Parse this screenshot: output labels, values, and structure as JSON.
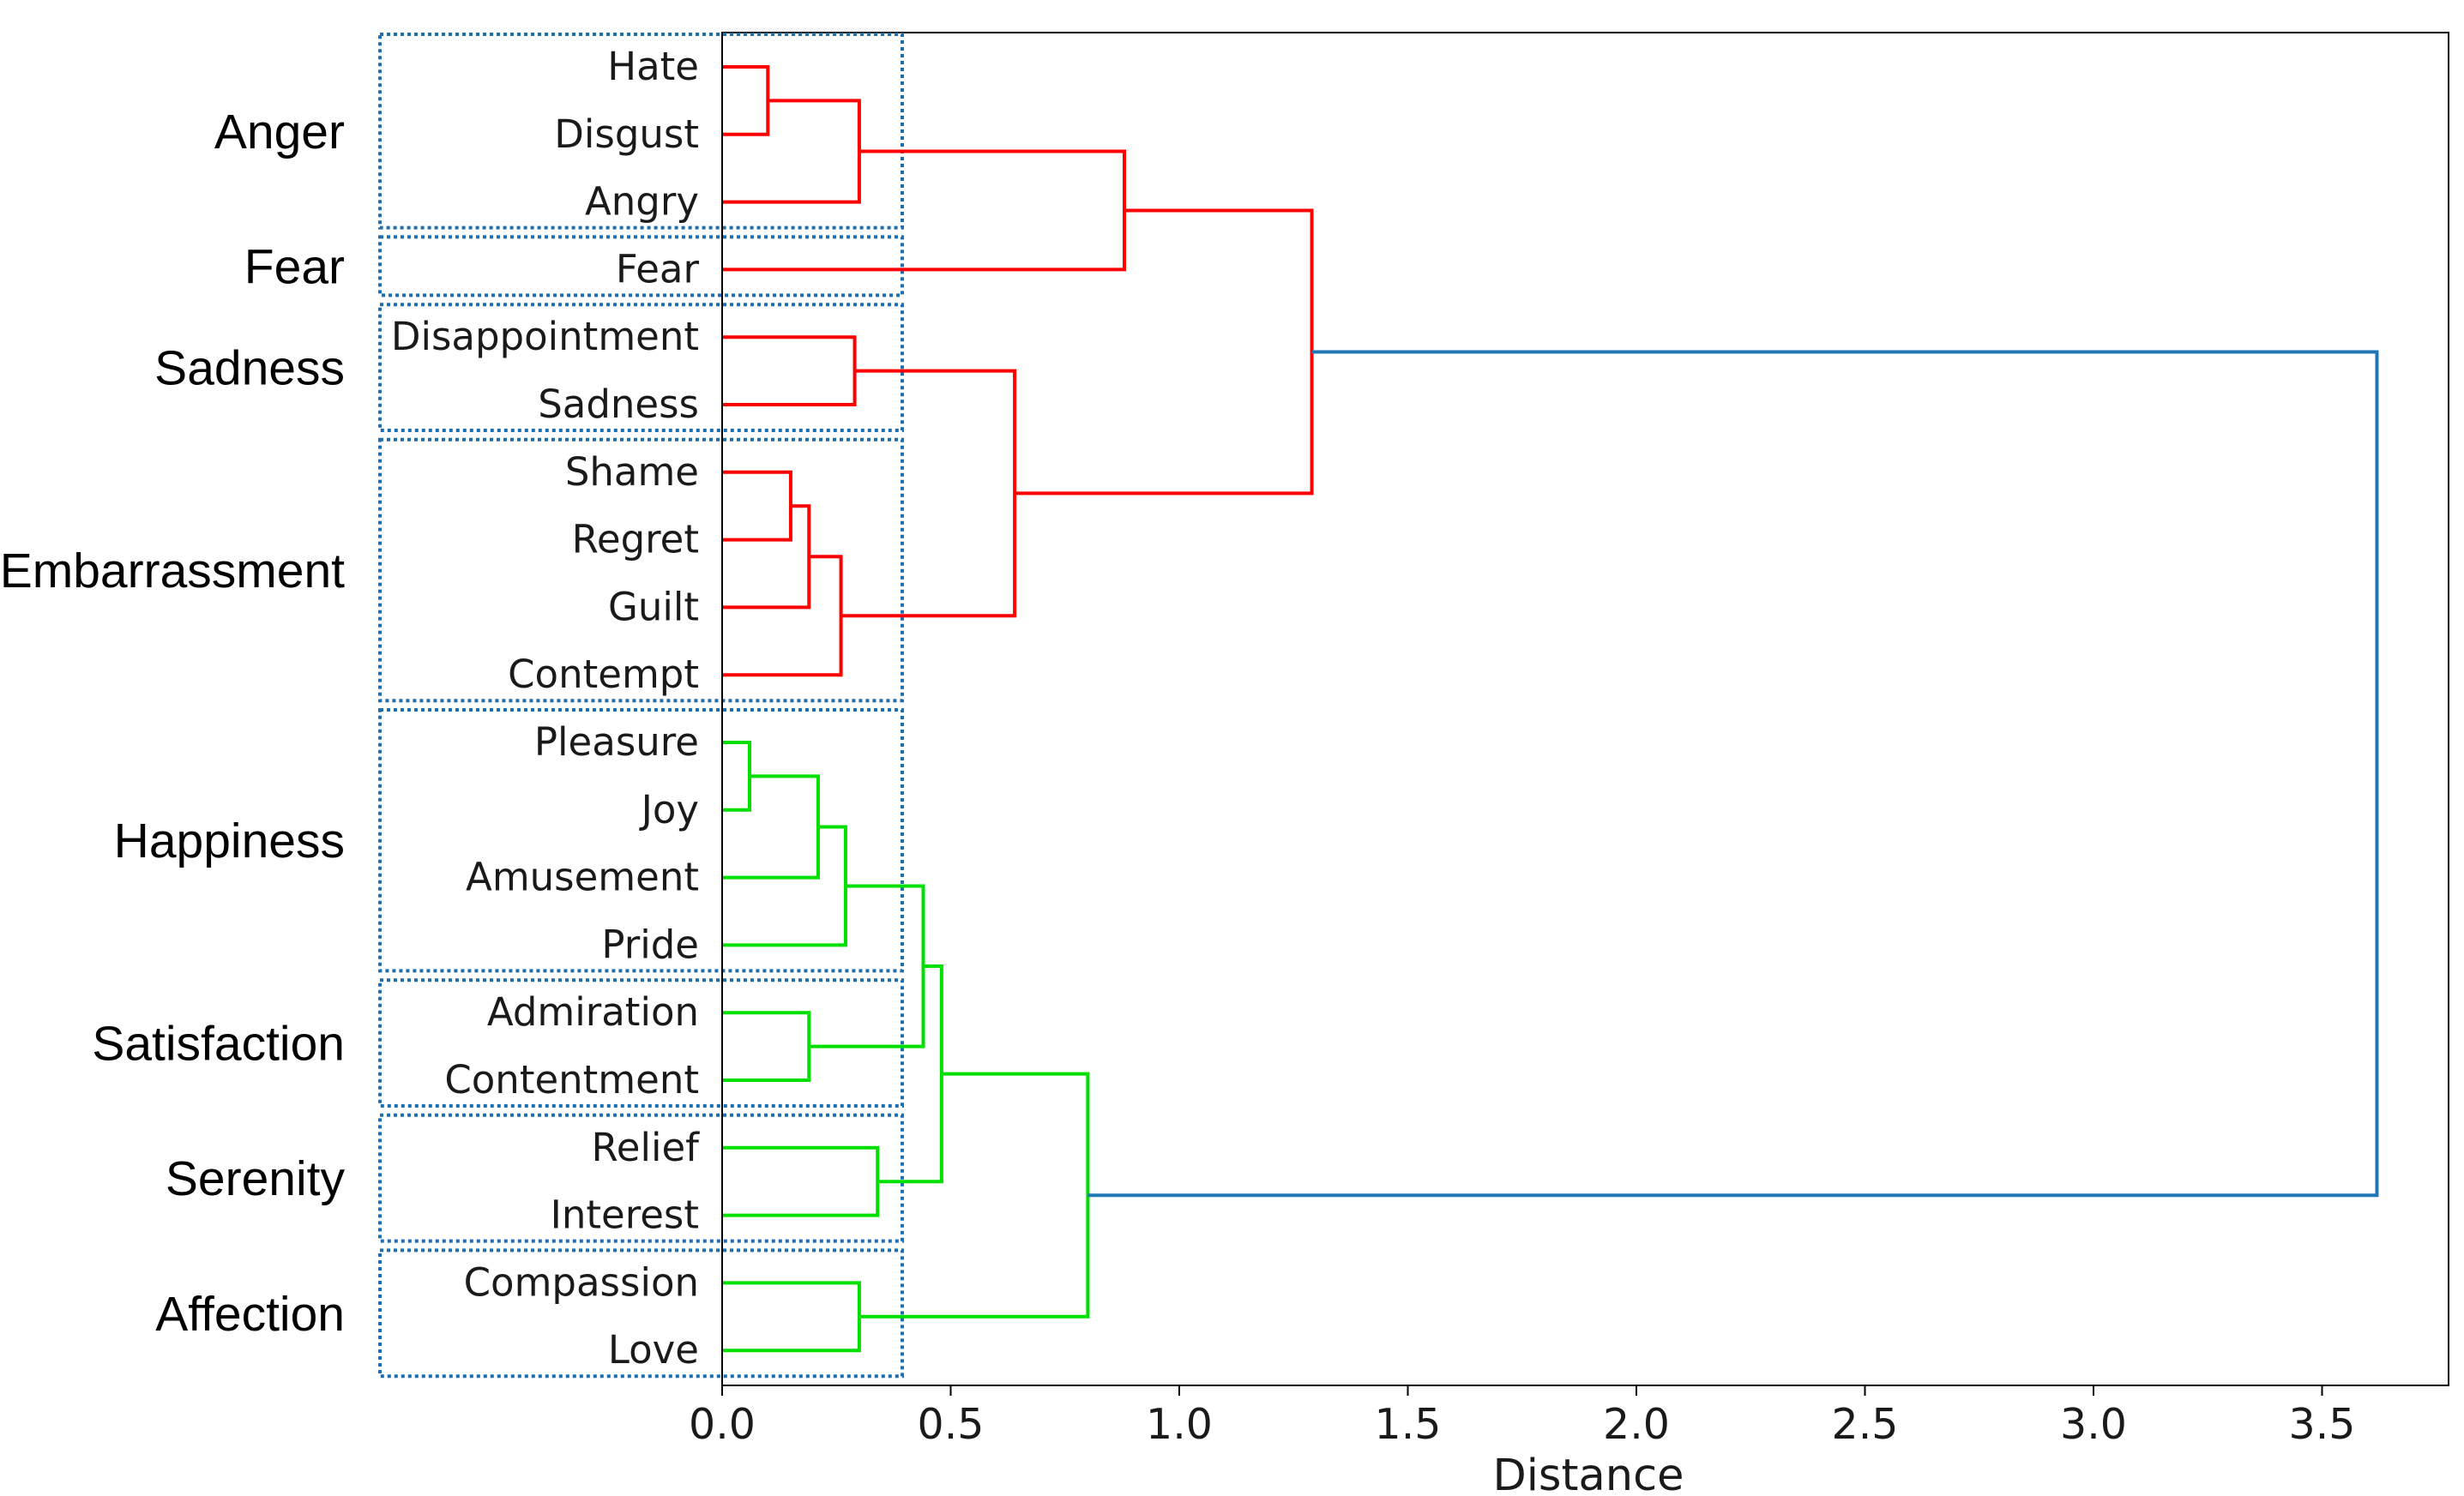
{
  "chart_data": {
    "type": "dendrogram",
    "orientation": "horizontal",
    "xlabel": "Distance",
    "xlim": [
      0.0,
      3.75
    ],
    "xticks": [
      0.0,
      0.5,
      1.0,
      1.5,
      2.0,
      2.5,
      3.0,
      3.5
    ],
    "xtick_labels": [
      "0.0",
      "0.5",
      "1.0",
      "1.5",
      "2.0",
      "2.5",
      "3.0",
      "3.5"
    ],
    "colors": {
      "cluster_a": "#ff0000",
      "cluster_b": "#00e000",
      "root": "#1f77b4",
      "group_box": "#1f6fb0"
    },
    "leaves": [
      "Hate",
      "Disgust",
      "Angry",
      "Fear",
      "Disappointment",
      "Sadness",
      "Shame",
      "Regret",
      "Guilt",
      "Contempt",
      "Pleasure",
      "Joy",
      "Amusement",
      "Pride",
      "Admiration",
      "Contentment",
      "Relief",
      "Interest",
      "Compassion",
      "Love"
    ],
    "merges": [
      {
        "id": "m1",
        "children": [
          "Hate",
          "Disgust"
        ],
        "distance": 0.1,
        "color": "cluster_a"
      },
      {
        "id": "m2",
        "children": [
          "m1",
          "Angry"
        ],
        "distance": 0.3,
        "color": "cluster_a"
      },
      {
        "id": "m3",
        "children": [
          "m2",
          "Fear"
        ],
        "distance": 0.88,
        "color": "cluster_a"
      },
      {
        "id": "m4",
        "children": [
          "Disappointment",
          "Sadness"
        ],
        "distance": 0.29,
        "color": "cluster_a"
      },
      {
        "id": "m5",
        "children": [
          "Shame",
          "Regret"
        ],
        "distance": 0.15,
        "color": "cluster_a"
      },
      {
        "id": "m6",
        "children": [
          "m5",
          "Guilt"
        ],
        "distance": 0.19,
        "color": "cluster_a"
      },
      {
        "id": "m7",
        "children": [
          "m6",
          "Contempt"
        ],
        "distance": 0.26,
        "color": "cluster_a"
      },
      {
        "id": "m8",
        "children": [
          "m4",
          "m7"
        ],
        "distance": 0.64,
        "color": "cluster_a"
      },
      {
        "id": "m9",
        "children": [
          "m3",
          "m8"
        ],
        "distance": 1.29,
        "color": "cluster_a"
      },
      {
        "id": "m10",
        "children": [
          "Pleasure",
          "Joy"
        ],
        "distance": 0.06,
        "color": "cluster_b"
      },
      {
        "id": "m11",
        "children": [
          "m10",
          "Amusement"
        ],
        "distance": 0.21,
        "color": "cluster_b"
      },
      {
        "id": "m12",
        "children": [
          "m11",
          "Pride"
        ],
        "distance": 0.27,
        "color": "cluster_b"
      },
      {
        "id": "m13",
        "children": [
          "Admiration",
          "Contentment"
        ],
        "distance": 0.19,
        "color": "cluster_b"
      },
      {
        "id": "m14",
        "children": [
          "m12",
          "m13"
        ],
        "distance": 0.44,
        "color": "cluster_b"
      },
      {
        "id": "m15",
        "children": [
          "Relief",
          "Interest"
        ],
        "distance": 0.34,
        "color": "cluster_b"
      },
      {
        "id": "m16",
        "children": [
          "m14",
          "m15"
        ],
        "distance": 0.48,
        "color": "cluster_b"
      },
      {
        "id": "m17",
        "children": [
          "Compassion",
          "Love"
        ],
        "distance": 0.3,
        "color": "cluster_b"
      },
      {
        "id": "m18",
        "children": [
          "m16",
          "m17"
        ],
        "distance": 0.8,
        "color": "cluster_b"
      },
      {
        "id": "m19",
        "children": [
          "m9",
          "m18"
        ],
        "distance": 3.62,
        "color": "root"
      }
    ],
    "groups": [
      {
        "name": "Anger",
        "members": [
          "Hate",
          "Disgust",
          "Angry"
        ]
      },
      {
        "name": "Fear",
        "members": [
          "Fear"
        ]
      },
      {
        "name": "Sadness",
        "members": [
          "Disappointment",
          "Sadness"
        ]
      },
      {
        "name": "Embarrassment",
        "members": [
          "Shame",
          "Regret",
          "Guilt",
          "Contempt"
        ]
      },
      {
        "name": "Happiness",
        "members": [
          "Pleasure",
          "Joy",
          "Amusement",
          "Pride"
        ]
      },
      {
        "name": "Satisfaction",
        "members": [
          "Admiration",
          "Contentment"
        ]
      },
      {
        "name": "Serenity",
        "members": [
          "Relief",
          "Interest"
        ]
      },
      {
        "name": "Affection",
        "members": [
          "Compassion",
          "Love"
        ]
      }
    ]
  }
}
